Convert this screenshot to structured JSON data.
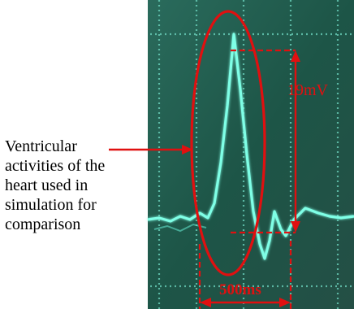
{
  "caption": {
    "lines": [
      "Ventricular",
      "activities of the",
      "heart used in",
      "simulation for",
      "comparison"
    ]
  },
  "annotations": {
    "amplitude": "19mV",
    "duration": "500ms"
  },
  "colors": {
    "scope_background": "#1f5a4c",
    "trace": "#7fffe6",
    "annotation": "#e01010",
    "caption_text": "#000000"
  }
}
